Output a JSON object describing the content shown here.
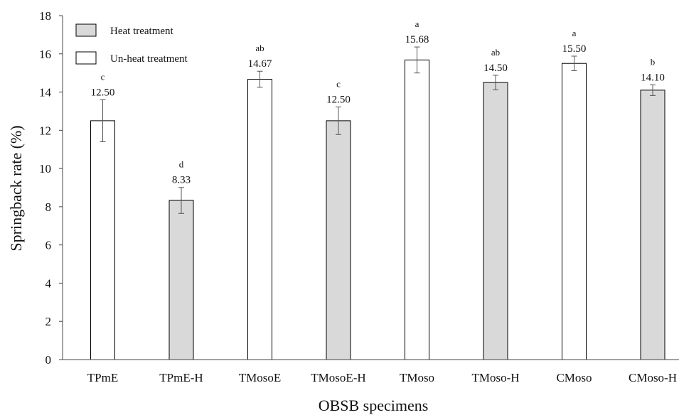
{
  "chart_data": {
    "type": "bar",
    "xlabel": "OBSB specimens",
    "ylabel": "Springback rate (%)",
    "ylim": [
      0,
      18
    ],
    "yticks": [
      "0",
      "2",
      "4",
      "6",
      "8",
      "10",
      "12",
      "14",
      "16",
      "18"
    ],
    "grid": false,
    "legend_position": "top-left",
    "legend": [
      {
        "label": "Heat treatment",
        "color": "#d9d9d9"
      },
      {
        "label": "Un-heat treatment",
        "color": "#ffffff"
      }
    ],
    "categories": [
      "TPmE",
      "TPmE-H",
      "TMosoE",
      "TMosoE-H",
      "TMoso",
      "TMoso-H",
      "CMoso",
      "CMoso-H"
    ],
    "values": [
      12.5,
      8.33,
      14.67,
      12.5,
      15.68,
      14.5,
      15.5,
      14.1
    ],
    "value_labels": [
      "12.50",
      "8.33",
      "14.67",
      "12.50",
      "15.68",
      "14.50",
      "15.50",
      "14.10"
    ],
    "errors": [
      1.1,
      0.68,
      0.42,
      0.72,
      0.68,
      0.38,
      0.38,
      0.28
    ],
    "significance": [
      "c",
      "d",
      "ab",
      "c",
      "a",
      "ab",
      "a",
      "b"
    ],
    "heat_treated": [
      false,
      true,
      false,
      true,
      false,
      true,
      false,
      true
    ]
  }
}
